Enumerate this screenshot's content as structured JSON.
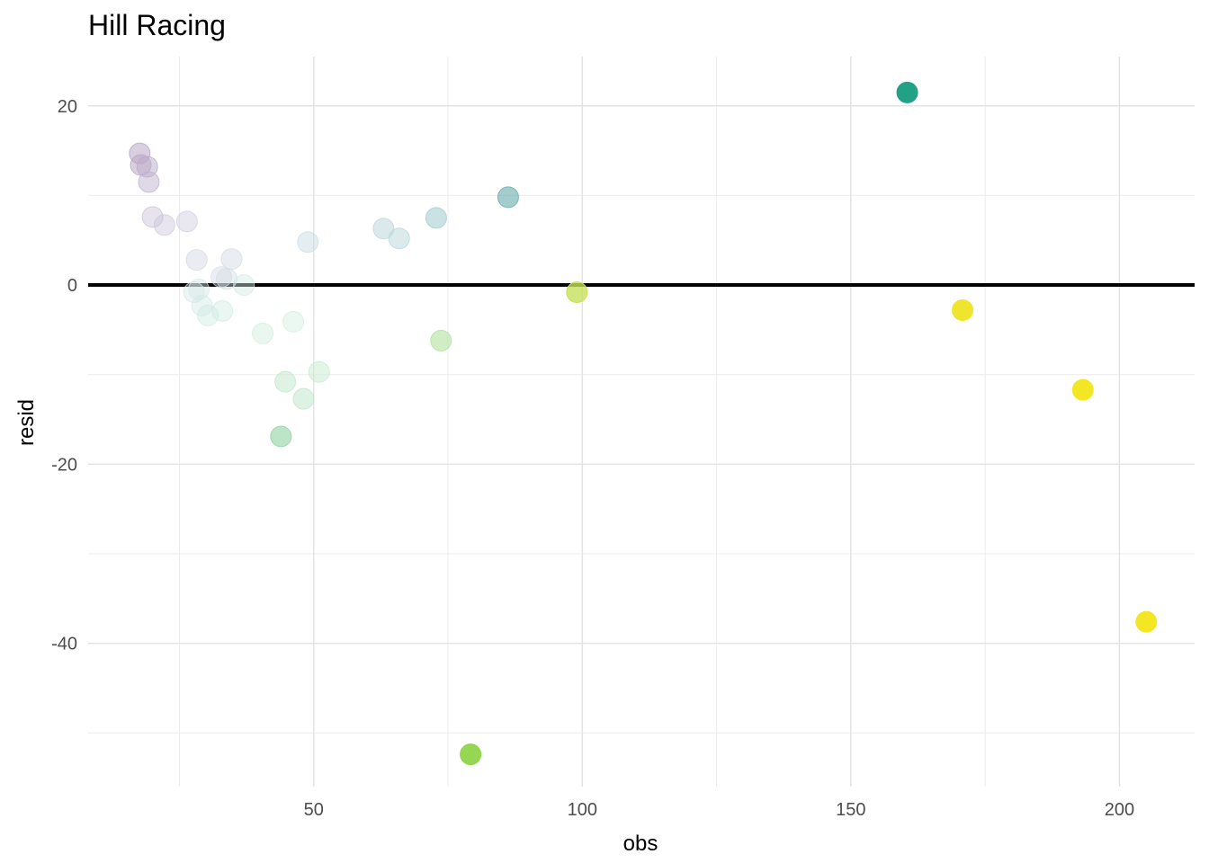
{
  "chart_data": {
    "type": "scatter",
    "title": "Hill Racing",
    "xlabel": "obs",
    "ylabel": "resid",
    "xlim": [
      8,
      214
    ],
    "ylim": [
      -56,
      25.5
    ],
    "x_ticks": [
      50,
      100,
      150,
      200
    ],
    "x_minor_ticks": [
      25,
      75,
      125,
      175
    ],
    "y_ticks": [
      20,
      0,
      -20,
      -40
    ],
    "y_minor_ticks": [
      10,
      -10,
      -30,
      -50
    ],
    "grid": true,
    "legend": "none",
    "reference_line": {
      "y": 0,
      "color": "#000000"
    },
    "points": [
      {
        "x": 17.6,
        "y": 14.7,
        "color": "#b9a7c6",
        "alpha": 0.55
      },
      {
        "x": 17.8,
        "y": 13.4,
        "color": "#b9a7c6",
        "alpha": 0.55
      },
      {
        "x": 19.0,
        "y": 13.2,
        "color": "#bbabc9",
        "alpha": 0.5
      },
      {
        "x": 19.3,
        "y": 11.5,
        "color": "#c0b2cd",
        "alpha": 0.5
      },
      {
        "x": 20.0,
        "y": 7.6,
        "color": "#c9c0d8",
        "alpha": 0.45
      },
      {
        "x": 22.2,
        "y": 6.7,
        "color": "#cbc6dc",
        "alpha": 0.45
      },
      {
        "x": 26.4,
        "y": 7.1,
        "color": "#cfcde0",
        "alpha": 0.45
      },
      {
        "x": 28.2,
        "y": 2.8,
        "color": "#d1d5e2",
        "alpha": 0.45
      },
      {
        "x": 27.7,
        "y": -0.8,
        "color": "#d6e8e6",
        "alpha": 0.45
      },
      {
        "x": 28.6,
        "y": -0.5,
        "color": "#d6e8e6",
        "alpha": 0.45
      },
      {
        "x": 29.2,
        "y": -2.3,
        "color": "#d3e9e4",
        "alpha": 0.45
      },
      {
        "x": 30.3,
        "y": -3.4,
        "color": "#d0eae2",
        "alpha": 0.45
      },
      {
        "x": 32.8,
        "y": 0.9,
        "color": "#d3dce4",
        "alpha": 0.45
      },
      {
        "x": 33.8,
        "y": 0.7,
        "color": "#d3dde4",
        "alpha": 0.45
      },
      {
        "x": 33.0,
        "y": -2.9,
        "color": "#d0eae2",
        "alpha": 0.45
      },
      {
        "x": 34.7,
        "y": 2.9,
        "color": "#d2d8e3",
        "alpha": 0.45
      },
      {
        "x": 37.0,
        "y": 0.0,
        "color": "#d3ebe3",
        "alpha": 0.45
      },
      {
        "x": 40.5,
        "y": -5.4,
        "color": "#cfeedd",
        "alpha": 0.45
      },
      {
        "x": 46.2,
        "y": -4.1,
        "color": "#d1efdf",
        "alpha": 0.45
      },
      {
        "x": 48.9,
        "y": 4.8,
        "color": "#c9dde2",
        "alpha": 0.5
      },
      {
        "x": 44.7,
        "y": -10.8,
        "color": "#bfe7c9",
        "alpha": 0.5
      },
      {
        "x": 48.1,
        "y": -12.7,
        "color": "#bde6c7",
        "alpha": 0.5
      },
      {
        "x": 51.0,
        "y": -9.7,
        "color": "#c6ebd0",
        "alpha": 0.5
      },
      {
        "x": 43.9,
        "y": -16.9,
        "color": "#98d5a8",
        "alpha": 0.65
      },
      {
        "x": 63.0,
        "y": 6.3,
        "color": "#c0d7dc",
        "alpha": 0.55
      },
      {
        "x": 65.9,
        "y": 5.2,
        "color": "#bdd8db",
        "alpha": 0.55
      },
      {
        "x": 72.8,
        "y": 7.5,
        "color": "#a9cfd2",
        "alpha": 0.6
      },
      {
        "x": 73.7,
        "y": -6.2,
        "color": "#b8e4a4",
        "alpha": 0.65
      },
      {
        "x": 86.2,
        "y": 9.8,
        "color": "#72b2b2",
        "alpha": 0.65
      },
      {
        "x": 79.2,
        "y": -52.4,
        "color": "#8fd449",
        "alpha": 0.95
      },
      {
        "x": 99.0,
        "y": -0.8,
        "color": "#c7e15a",
        "alpha": 0.8
      },
      {
        "x": 160.5,
        "y": 21.5,
        "color": "#21a186",
        "alpha": 1.0
      },
      {
        "x": 170.8,
        "y": -2.8,
        "color": "#efe52e",
        "alpha": 1.0
      },
      {
        "x": 193.2,
        "y": -11.7,
        "color": "#f3e625",
        "alpha": 1.0
      },
      {
        "x": 205.0,
        "y": -37.6,
        "color": "#f5e623",
        "alpha": 1.0
      }
    ]
  }
}
